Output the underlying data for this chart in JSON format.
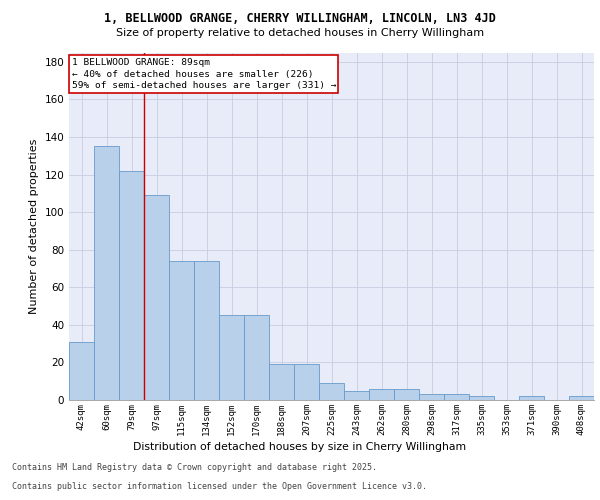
{
  "title1": "1, BELLWOOD GRANGE, CHERRY WILLINGHAM, LINCOLN, LN3 4JD",
  "title2": "Size of property relative to detached houses in Cherry Willingham",
  "xlabel": "Distribution of detached houses by size in Cherry Willingham",
  "ylabel": "Number of detached properties",
  "categories": [
    "42sqm",
    "60sqm",
    "79sqm",
    "97sqm",
    "115sqm",
    "134sqm",
    "152sqm",
    "170sqm",
    "188sqm",
    "207sqm",
    "225sqm",
    "243sqm",
    "262sqm",
    "280sqm",
    "298sqm",
    "317sqm",
    "335sqm",
    "353sqm",
    "371sqm",
    "390sqm",
    "408sqm"
  ],
  "values": [
    31,
    135,
    122,
    109,
    74,
    74,
    45,
    45,
    19,
    19,
    9,
    5,
    6,
    6,
    3,
    3,
    2,
    0,
    2,
    0,
    2
  ],
  "bar_color": "#b8d0ea",
  "bar_edge_color": "#6699cc",
  "bg_color": "#e8ecf8",
  "grid_color": "#c8cce0",
  "vline_x": 2.5,
  "vline_color": "#cc0000",
  "annotation_text": "1 BELLWOOD GRANGE: 89sqm\n← 40% of detached houses are smaller (226)\n59% of semi-detached houses are larger (331) →",
  "annotation_box_color": "#cc0000",
  "footer1": "Contains HM Land Registry data © Crown copyright and database right 2025.",
  "footer2": "Contains public sector information licensed under the Open Government Licence v3.0.",
  "ylim": [
    0,
    185
  ],
  "yticks": [
    0,
    20,
    40,
    60,
    80,
    100,
    120,
    140,
    160,
    180
  ]
}
